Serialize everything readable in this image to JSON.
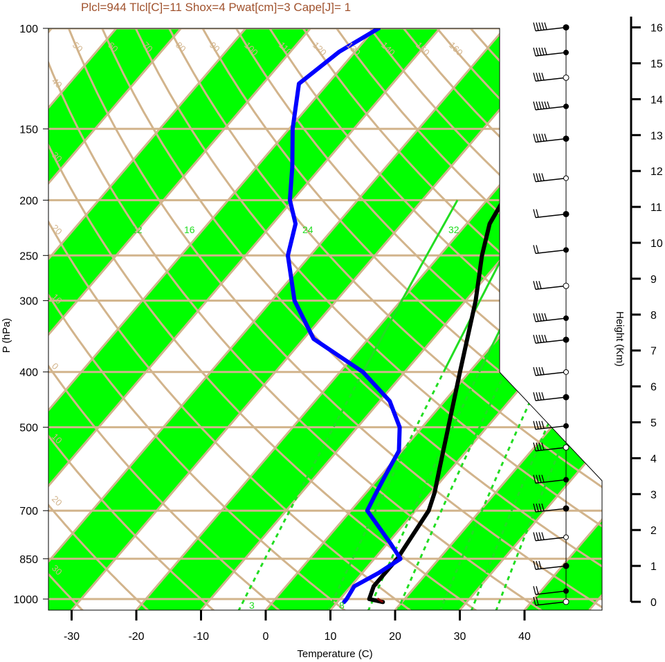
{
  "header": {
    "text": "Plcl=944 Tlcl[C]=11 Shox=4 Pwat[cm]=3 Cape[J]= 1"
  },
  "colors": {
    "band": "#00ff00",
    "isobar": "#d2b48c",
    "mixing": "#22dd22",
    "temperature": "#000000",
    "dewpoint": "#0000ff",
    "surface_mark": "#8b0000"
  },
  "chart_data": {
    "type": "line",
    "subtitle": "Plcl=944 Tlcl[C]=11 Shox=4 Pwat[cm]=3 Cape[J]= 1",
    "xlabel": "Temperature (C)",
    "ylabel": "P (hPa)",
    "y2label": "Height (Km)",
    "x_ticks": [
      "-30",
      "-20",
      "-10",
      "0",
      "10",
      "20",
      "30",
      "40"
    ],
    "pressure_ticks": [
      "100",
      "150",
      "200",
      "250",
      "300",
      "400",
      "500",
      "700",
      "850",
      "1000"
    ],
    "height_ticks": [
      "0",
      "1",
      "2",
      "3",
      "4",
      "5",
      "6",
      "7",
      "8",
      "9",
      "10",
      "11",
      "12",
      "13",
      "14",
      "15",
      "16"
    ],
    "xlim": [
      -34,
      36
    ],
    "ylim_hPa": [
      1050,
      100
    ],
    "isotherm_labels": [
      "50",
      "60",
      "70",
      "80",
      "90",
      "100",
      "110",
      "120",
      "130",
      "140",
      "150",
      "160",
      "30",
      "20",
      "10",
      "0",
      "10",
      "20",
      "30"
    ],
    "left_temp_labels": [
      "40",
      "30",
      "20",
      "10",
      "0",
      "10",
      "20",
      "30"
    ],
    "mixing_ratio_labels": [
      "12",
      "16",
      "24",
      "32",
      "3",
      "8"
    ],
    "series": [
      {
        "name": "",
        "color": "#000000",
        "p": [
          1012,
          1000,
          950,
          850,
          700,
          650,
          600,
          500,
          400,
          300,
          250,
          220,
          200,
          175,
          150,
          120,
          100
        ],
        "t": [
          18.5,
          16.0,
          15.0,
          15.0,
          13.5,
          12.0,
          10.0,
          5.5,
          0.0,
          -7.0,
          -12.0,
          -15.0,
          -16.0,
          -14.0,
          -10.0,
          -4.0,
          1.0
        ]
      },
      {
        "name": "",
        "color": "#0000ff",
        "p": [
          1012,
          1000,
          950,
          900,
          850,
          800,
          700,
          650,
          600,
          550,
          500,
          450,
          400,
          350,
          300,
          250,
          220,
          200,
          175,
          150,
          125,
          110,
          100
        ],
        "t": [
          12.5,
          12.5,
          12.0,
          14.0,
          15.5,
          12.0,
          4.0,
          3.0,
          2.0,
          1.0,
          -2.0,
          -7.0,
          -15.0,
          -27.0,
          -35.0,
          -42.0,
          -45.0,
          -49.0,
          -53.0,
          -58.0,
          -63.0,
          -61.0,
          -58.0
        ]
      }
    ],
    "wind_barbs": [
      {
        "km": 16.0,
        "barb": "50"
      },
      {
        "km": 15.3,
        "barb": "50"
      },
      {
        "km": 14.6,
        "barb": "40"
      },
      {
        "km": 13.8,
        "barb": "60"
      },
      {
        "km": 12.9,
        "barb": "50"
      },
      {
        "km": 11.8,
        "barb": "35"
      },
      {
        "km": 10.8,
        "barb": "20"
      },
      {
        "km": 9.8,
        "barb": "20"
      },
      {
        "km": 8.8,
        "barb": "30"
      },
      {
        "km": 7.9,
        "barb": "50"
      },
      {
        "km": 7.3,
        "barb": "50"
      },
      {
        "km": 6.4,
        "barb": "40"
      },
      {
        "km": 5.7,
        "barb": "40"
      },
      {
        "km": 4.9,
        "barb": "40"
      },
      {
        "km": 4.3,
        "barb": "40"
      },
      {
        "km": 3.4,
        "barb": "40"
      },
      {
        "km": 2.6,
        "barb": "40"
      },
      {
        "km": 1.8,
        "barb": "40"
      },
      {
        "km": 1.0,
        "barb": "30"
      },
      {
        "km": 0.3,
        "barb": "20"
      },
      {
        "km": 0.0,
        "barb": "20"
      }
    ]
  }
}
